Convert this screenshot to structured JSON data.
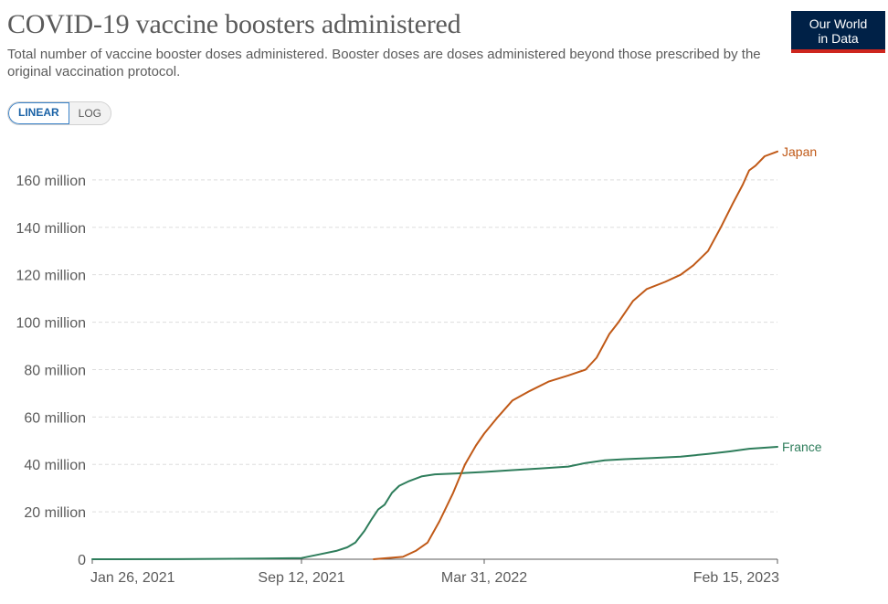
{
  "header": {
    "title": "COVID-19 vaccine boosters administered",
    "subtitle": "Total number of vaccine booster doses administered. Booster doses are doses administered beyond those prescribed by the original vaccination protocol.",
    "logo_line1": "Our World",
    "logo_line2": "in Data"
  },
  "controls": {
    "linear_label": "LINEAR",
    "log_label": "LOG",
    "active_scale": "LINEAR"
  },
  "colors": {
    "japan": "#c05917",
    "france": "#2e7d5b",
    "grid": "#dddddd",
    "axis": "#5b5b5b"
  },
  "chart_data": {
    "type": "line",
    "title": "COVID-19 vaccine boosters administered",
    "ylim": [
      0,
      175
    ],
    "y_ticks": [
      0,
      20,
      40,
      60,
      80,
      100,
      120,
      140,
      160
    ],
    "y_tick_labels": [
      "0",
      "20 million",
      "40 million",
      "60 million",
      "80 million",
      "100 million",
      "120 million",
      "140 million",
      "160 million"
    ],
    "xlim": [
      "2021-01-26",
      "2023-02-15"
    ],
    "x_ticks": [
      "2021-01-26",
      "2021-09-12",
      "2022-03-31",
      "2023-02-15"
    ],
    "x_tick_labels": [
      "Jan 26, 2021",
      "Sep 12, 2021",
      "Mar 31, 2022",
      "Feb 15, 2023"
    ],
    "grid": "horizontal dashed",
    "legend": "inline labels at line ends",
    "series": [
      {
        "name": "France",
        "points": [
          [
            "2021-01-26",
            0
          ],
          [
            "2021-05-01",
            0.05
          ],
          [
            "2021-08-01",
            0.3
          ],
          [
            "2021-09-12",
            0.5
          ],
          [
            "2021-10-01",
            2
          ],
          [
            "2021-10-20",
            3.5
          ],
          [
            "2021-11-01",
            5
          ],
          [
            "2021-11-10",
            7
          ],
          [
            "2021-11-20",
            12
          ],
          [
            "2021-11-28",
            17
          ],
          [
            "2021-12-05",
            21
          ],
          [
            "2021-12-12",
            23
          ],
          [
            "2021-12-20",
            28
          ],
          [
            "2021-12-28",
            31
          ],
          [
            "2022-01-08",
            33
          ],
          [
            "2022-01-22",
            35
          ],
          [
            "2022-02-05",
            35.8
          ],
          [
            "2022-03-01",
            36.2
          ],
          [
            "2022-03-31",
            36.8
          ],
          [
            "2022-05-01",
            37.6
          ],
          [
            "2022-06-01",
            38.3
          ],
          [
            "2022-07-01",
            39.1
          ],
          [
            "2022-07-20",
            40.6
          ],
          [
            "2022-08-10",
            41.7
          ],
          [
            "2022-09-01",
            42.2
          ],
          [
            "2022-10-01",
            42.7
          ],
          [
            "2022-11-01",
            43.3
          ],
          [
            "2022-12-01",
            44.4
          ],
          [
            "2022-12-25",
            45.5
          ],
          [
            "2023-01-15",
            46.6
          ],
          [
            "2023-02-15",
            47.4
          ]
        ]
      },
      {
        "name": "Japan",
        "points": [
          [
            "2021-11-30",
            0
          ],
          [
            "2021-12-15",
            0.5
          ],
          [
            "2022-01-01",
            1
          ],
          [
            "2022-01-15",
            3.5
          ],
          [
            "2022-01-28",
            7
          ],
          [
            "2022-02-10",
            16
          ],
          [
            "2022-02-25",
            28
          ],
          [
            "2022-03-10",
            40
          ],
          [
            "2022-03-22",
            48
          ],
          [
            "2022-03-31",
            53
          ],
          [
            "2022-04-15",
            60
          ],
          [
            "2022-05-01",
            67
          ],
          [
            "2022-05-20",
            71
          ],
          [
            "2022-06-10",
            75
          ],
          [
            "2022-07-01",
            77.5
          ],
          [
            "2022-07-20",
            80
          ],
          [
            "2022-08-01",
            85
          ],
          [
            "2022-08-15",
            95
          ],
          [
            "2022-08-25",
            100
          ],
          [
            "2022-09-10",
            109
          ],
          [
            "2022-09-25",
            114
          ],
          [
            "2022-10-15",
            117
          ],
          [
            "2022-11-01",
            120
          ],
          [
            "2022-11-15",
            124
          ],
          [
            "2022-12-01",
            130
          ],
          [
            "2022-12-15",
            140
          ],
          [
            "2022-12-28",
            150
          ],
          [
            "2023-01-08",
            158
          ],
          [
            "2023-01-15",
            164
          ],
          [
            "2023-01-22",
            166
          ],
          [
            "2023-02-01",
            170
          ],
          [
            "2023-02-15",
            172
          ]
        ]
      }
    ]
  }
}
